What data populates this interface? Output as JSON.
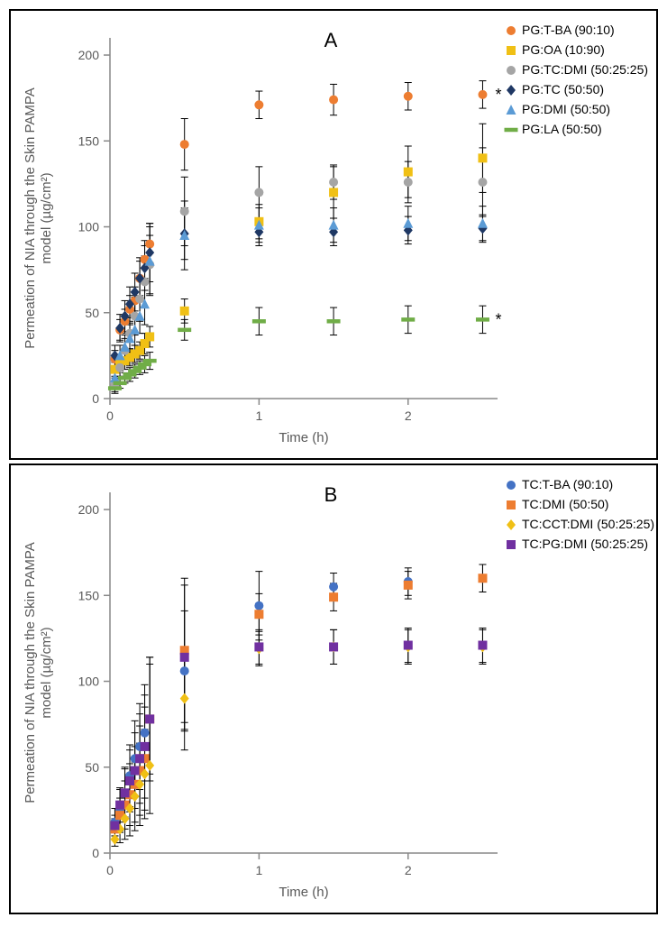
{
  "global": {
    "background_color": "#ffffff",
    "axis_color": "#888888",
    "tick_color": "#888888",
    "text_color": "#595959",
    "ylabel_color": "#595959",
    "font_family": "Arial, sans-serif",
    "label_fontsize": 15,
    "tick_fontsize": 14,
    "panel_label_fontsize": 22,
    "legend_fontsize": 14
  },
  "panelA": {
    "label": "A",
    "xlabel": "Time (h)",
    "ylabel": "Permeation of NIA through the Skin PAMPA model (µg/cm²)",
    "xlim": [
      0,
      2.6
    ],
    "ylim": [
      0,
      210
    ],
    "xticks": [
      0,
      1,
      2
    ],
    "yticks": [
      0,
      50,
      100,
      150,
      200
    ],
    "series": [
      {
        "name": "PG:T-BA (90:10)",
        "marker": "circle",
        "color": "#ed7d31",
        "x": [
          0.033,
          0.067,
          0.1,
          0.133,
          0.167,
          0.2,
          0.233,
          0.267,
          0.5,
          1.0,
          1.5,
          2.0,
          2.5
        ],
        "y": [
          23,
          40,
          45,
          52,
          57,
          70,
          81,
          90,
          148,
          171,
          174,
          176,
          177
        ],
        "err": [
          5,
          6,
          7,
          8,
          8,
          10,
          11,
          12,
          15,
          8,
          9,
          8,
          8
        ],
        "star": true
      },
      {
        "name": "PG:OA (10:90)",
        "marker": "square",
        "color": "#f0c015",
        "x": [
          0.033,
          0.067,
          0.1,
          0.133,
          0.167,
          0.2,
          0.233,
          0.267,
          0.5,
          1.0,
          1.5,
          2.0,
          2.5
        ],
        "y": [
          17,
          20,
          22,
          24,
          26,
          28,
          32,
          36,
          51,
          103,
          120,
          132,
          140
        ],
        "err": [
          4,
          4,
          5,
          5,
          5,
          5,
          6,
          6,
          7,
          10,
          15,
          15,
          20
        ]
      },
      {
        "name": "PG:TC:DMI (50:25:25)",
        "marker": "circle",
        "color": "#a5a5a5",
        "x": [
          0.033,
          0.067,
          0.1,
          0.133,
          0.167,
          0.2,
          0.233,
          0.267,
          0.5,
          1.0,
          1.5,
          2.0,
          2.5
        ],
        "y": [
          8,
          18,
          28,
          38,
          48,
          58,
          68,
          78,
          109,
          120,
          126,
          126,
          126
        ],
        "err": [
          4,
          5,
          7,
          9,
          11,
          13,
          15,
          17,
          20,
          15,
          10,
          12,
          20
        ]
      },
      {
        "name": "PG:TC (50:50)",
        "marker": "diamond",
        "color": "#1f3864",
        "x": [
          0.033,
          0.067,
          0.1,
          0.133,
          0.167,
          0.2,
          0.233,
          0.267,
          0.5,
          1.0,
          1.5,
          2.0,
          2.5
        ],
        "y": [
          25,
          41,
          48,
          55,
          62,
          70,
          76,
          85,
          96,
          97,
          97,
          98,
          99
        ],
        "err": [
          6,
          8,
          9,
          10,
          11,
          12,
          13,
          17,
          15,
          8,
          8,
          8,
          8
        ]
      },
      {
        "name": "PG:DMI (50:50)",
        "marker": "triangle",
        "color": "#5b9bd5",
        "x": [
          0.033,
          0.067,
          0.1,
          0.133,
          0.167,
          0.2,
          0.233,
          0.267,
          0.5,
          1.0,
          1.5,
          2.0,
          2.5
        ],
        "y": [
          12,
          25,
          30,
          35,
          40,
          48,
          55,
          80,
          95,
          101,
          101,
          102,
          102
        ],
        "err": [
          4,
          6,
          7,
          8,
          9,
          10,
          12,
          20,
          20,
          10,
          10,
          10,
          10
        ]
      },
      {
        "name": "PG:LA (50:50)",
        "marker": "dash",
        "color": "#70ad47",
        "x": [
          0.033,
          0.067,
          0.1,
          0.133,
          0.167,
          0.2,
          0.233,
          0.267,
          0.5,
          1.0,
          1.5,
          2.0,
          2.5
        ],
        "y": [
          6,
          9,
          12,
          14,
          16,
          18,
          20,
          22,
          40,
          45,
          45,
          46,
          46
        ],
        "err": [
          3,
          3,
          3,
          4,
          4,
          4,
          5,
          5,
          6,
          8,
          8,
          8,
          8
        ],
        "star": true
      }
    ]
  },
  "panelB": {
    "label": "B",
    "xlabel": "Time (h)",
    "ylabel": "Permeation of NIA through the Skin PAMPA model (µg/cm²)",
    "xlim": [
      0,
      2.6
    ],
    "ylim": [
      0,
      210
    ],
    "xticks": [
      0,
      1,
      2
    ],
    "yticks": [
      0,
      50,
      100,
      150,
      200
    ],
    "series": [
      {
        "name": "TC:T-BA (90:10)",
        "marker": "circle",
        "color": "#4472c4",
        "x": [
          0.033,
          0.067,
          0.1,
          0.133,
          0.167,
          0.2,
          0.233,
          0.267,
          0.5,
          1.0,
          1.5,
          2.0,
          2.5
        ],
        "y": [
          18,
          25,
          35,
          45,
          55,
          62,
          70,
          78,
          106,
          144,
          155,
          158,
          160
        ],
        "err": [
          8,
          12,
          15,
          18,
          22,
          25,
          28,
          32,
          35,
          20,
          8,
          8,
          8
        ]
      },
      {
        "name": "TC:DMI (50:50)",
        "marker": "square",
        "color": "#ed7d31",
        "x": [
          0.033,
          0.067,
          0.1,
          0.133,
          0.167,
          0.2,
          0.233,
          0.267,
          0.5,
          1.0,
          1.5,
          2.0,
          2.5
        ],
        "y": [
          14,
          22,
          28,
          34,
          40,
          48,
          55,
          78,
          118,
          139,
          149,
          156,
          160
        ],
        "err": [
          6,
          10,
          14,
          18,
          22,
          26,
          30,
          36,
          42,
          12,
          8,
          8,
          8
        ]
      },
      {
        "name": "TC:CCT:DMI (50:25:25)",
        "marker": "diamond",
        "color": "#f0c015",
        "x": [
          0.033,
          0.067,
          0.1,
          0.133,
          0.167,
          0.2,
          0.233,
          0.267,
          0.5,
          1.0,
          1.5,
          2.0,
          2.5
        ],
        "y": [
          8,
          14,
          20,
          26,
          33,
          40,
          46,
          51,
          90,
          119,
          120,
          120,
          120
        ],
        "err": [
          4,
          8,
          12,
          16,
          20,
          24,
          26,
          28,
          30,
          10,
          10,
          10,
          10
        ]
      },
      {
        "name": "TC:PG:DMI (50:25:25)",
        "marker": "square",
        "color": "#7030a0",
        "x": [
          0.033,
          0.067,
          0.1,
          0.133,
          0.167,
          0.2,
          0.233,
          0.267,
          0.5,
          1.0,
          1.5,
          2.0,
          2.5
        ],
        "y": [
          16,
          28,
          35,
          42,
          48,
          55,
          62,
          78,
          114,
          120,
          120,
          121,
          121
        ],
        "err": [
          6,
          10,
          14,
          18,
          22,
          26,
          30,
          36,
          42,
          10,
          10,
          10,
          10
        ]
      }
    ]
  }
}
